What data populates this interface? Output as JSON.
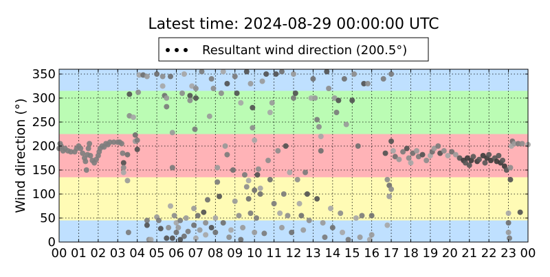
{
  "chart_data": {
    "type": "scatter",
    "title": "Latest time: 2024-08-29 00:00:00 UTC",
    "legend": {
      "label": "Resultant wind direction (200.5°)",
      "placement": "top-center",
      "marker": "•••"
    },
    "xlabel": "",
    "ylabel": "Wind direction (°)",
    "xlim": [
      0,
      24
    ],
    "ylim": [
      0,
      360
    ],
    "grid": true,
    "x_tick_labels": [
      "00",
      "01",
      "02",
      "03",
      "04",
      "05",
      "06",
      "07",
      "08",
      "09",
      "10",
      "11",
      "12",
      "13",
      "14",
      "15",
      "16",
      "17",
      "18",
      "19",
      "20",
      "21",
      "22",
      "23",
      "00"
    ],
    "y_ticks": [
      0,
      50,
      100,
      150,
      200,
      250,
      300,
      350
    ],
    "bands": [
      {
        "from": 0,
        "to": 45,
        "color": "#bfe0ff"
      },
      {
        "from": 45,
        "to": 135,
        "color": "#fffbb5"
      },
      {
        "from": 135,
        "to": 225,
        "color": "#ffb3b7"
      },
      {
        "from": 225,
        "to": 315,
        "color": "#bbfcb4"
      },
      {
        "from": 315,
        "to": 360,
        "color": "#bfe0ff"
      }
    ],
    "points": [
      [
        0.0,
        195
      ],
      [
        0.05,
        205
      ],
      [
        0.1,
        200
      ],
      [
        0.2,
        190
      ],
      [
        0.3,
        195
      ],
      [
        0.45,
        190
      ],
      [
        0.6,
        188
      ],
      [
        0.8,
        188
      ],
      [
        0.9,
        195
      ],
      [
        1.0,
        200
      ],
      [
        1.1,
        195
      ],
      [
        1.2,
        185
      ],
      [
        1.3,
        175
      ],
      [
        1.35,
        168
      ],
      [
        1.4,
        150
      ],
      [
        1.45,
        182
      ],
      [
        1.5,
        195
      ],
      [
        1.55,
        205
      ],
      [
        1.6,
        180
      ],
      [
        1.7,
        170
      ],
      [
        1.8,
        165
      ],
      [
        1.9,
        172
      ],
      [
        2.0,
        180
      ],
      [
        2.05,
        188
      ],
      [
        2.1,
        195
      ],
      [
        2.2,
        200
      ],
      [
        2.3,
        198
      ],
      [
        2.4,
        205
      ],
      [
        2.5,
        203
      ],
      [
        2.6,
        208
      ],
      [
        2.8,
        208
      ],
      [
        3.0,
        208
      ],
      [
        3.1,
        208
      ],
      [
        3.2,
        205
      ],
      [
        3.25,
        185
      ],
      [
        3.3,
        165
      ],
      [
        3.3,
        155
      ],
      [
        3.3,
        145
      ],
      [
        3.5,
        182
      ],
      [
        3.5,
        128
      ],
      [
        3.55,
        20
      ],
      [
        3.6,
        308
      ],
      [
        3.6,
        263
      ],
      [
        3.8,
        260
      ],
      [
        3.9,
        223
      ],
      [
        3.9,
        210
      ],
      [
        4.0,
        212
      ],
      [
        4.0,
        193
      ],
      [
        4.05,
        312
      ],
      [
        4.1,
        348
      ],
      [
        4.3,
        348
      ],
      [
        4.5,
        345
      ],
      [
        4.5,
        45
      ],
      [
        4.5,
        35
      ],
      [
        4.6,
        5
      ],
      [
        4.7,
        5
      ],
      [
        5.0,
        350
      ],
      [
        5.0,
        52
      ],
      [
        5.1,
        45
      ],
      [
        5.2,
        28
      ],
      [
        5.3,
        345
      ],
      [
        5.3,
        325
      ],
      [
        5.4,
        305
      ],
      [
        5.5,
        300
      ],
      [
        5.5,
        282
      ],
      [
        5.5,
        8
      ],
      [
        5.6,
        30
      ],
      [
        5.7,
        75
      ],
      [
        5.7,
        345
      ],
      [
        5.8,
        228
      ],
      [
        5.8,
        155
      ],
      [
        5.8,
        8
      ],
      [
        5.9,
        55
      ],
      [
        6.0,
        40
      ],
      [
        6.0,
        20
      ],
      [
        6.1,
        30
      ],
      [
        6.2,
        45
      ],
      [
        6.2,
        5
      ],
      [
        6.3,
        310
      ],
      [
        6.4,
        350
      ],
      [
        6.4,
        12
      ],
      [
        6.5,
        50
      ],
      [
        6.6,
        22
      ],
      [
        6.7,
        305
      ],
      [
        6.7,
        295
      ],
      [
        6.8,
        325
      ],
      [
        6.9,
        35
      ],
      [
        6.9,
        70
      ],
      [
        6.95,
        235
      ],
      [
        7.0,
        300
      ],
      [
        7.0,
        320
      ],
      [
        7.0,
        8
      ],
      [
        7.1,
        55
      ],
      [
        7.2,
        25
      ],
      [
        7.3,
        355
      ],
      [
        7.4,
        62
      ],
      [
        7.5,
        40
      ],
      [
        7.5,
        15
      ],
      [
        7.6,
        88
      ],
      [
        7.7,
        262
      ],
      [
        7.8,
        340
      ],
      [
        7.8,
        30
      ],
      [
        7.9,
        320
      ],
      [
        8.0,
        50
      ],
      [
        8.0,
        20
      ],
      [
        8.1,
        155
      ],
      [
        8.1,
        125
      ],
      [
        8.2,
        95
      ],
      [
        8.3,
        310
      ],
      [
        8.4,
        355
      ],
      [
        8.4,
        40
      ],
      [
        8.5,
        200
      ],
      [
        8.6,
        182
      ],
      [
        8.6,
        330
      ],
      [
        8.7,
        10
      ],
      [
        8.8,
        25
      ],
      [
        8.9,
        150
      ],
      [
        9.0,
        85
      ],
      [
        9.0,
        345
      ],
      [
        9.1,
        310
      ],
      [
        9.2,
        55
      ],
      [
        9.3,
        290
      ],
      [
        9.3,
        5
      ],
      [
        9.4,
        30
      ],
      [
        9.5,
        140
      ],
      [
        9.6,
        355
      ],
      [
        9.6,
        115
      ],
      [
        9.7,
        128
      ],
      [
        9.7,
        90
      ],
      [
        9.8,
        330
      ],
      [
        9.8,
        60
      ],
      [
        9.9,
        280
      ],
      [
        9.9,
        238
      ],
      [
        10.0,
        212
      ],
      [
        10.0,
        108
      ],
      [
        10.0,
        20
      ],
      [
        10.1,
        50
      ],
      [
        10.15,
        140
      ],
      [
        10.2,
        152
      ],
      [
        10.3,
        112
      ],
      [
        10.3,
        100
      ],
      [
        10.4,
        335
      ],
      [
        10.5,
        18
      ],
      [
        10.6,
        350
      ],
      [
        10.7,
        170
      ],
      [
        10.8,
        270
      ],
      [
        10.8,
        130
      ],
      [
        10.9,
        290
      ],
      [
        11.0,
        80
      ],
      [
        11.1,
        350
      ],
      [
        11.2,
        190
      ],
      [
        11.3,
        60
      ],
      [
        11.4,
        355
      ],
      [
        11.4,
        30
      ],
      [
        11.5,
        100
      ],
      [
        11.6,
        200
      ],
      [
        11.7,
        55
      ],
      [
        11.8,
        145
      ],
      [
        11.9,
        20
      ],
      [
        12.0,
        350
      ],
      [
        12.0,
        300
      ],
      [
        12.1,
        310
      ],
      [
        12.2,
        130
      ],
      [
        12.3,
        80
      ],
      [
        12.4,
        55
      ],
      [
        12.5,
        25
      ],
      [
        12.6,
        145
      ],
      [
        12.7,
        100
      ],
      [
        12.8,
        45
      ],
      [
        12.9,
        300
      ],
      [
        13.0,
        340
      ],
      [
        13.1,
        300
      ],
      [
        13.2,
        255
      ],
      [
        13.2,
        90
      ],
      [
        13.3,
        240
      ],
      [
        13.4,
        220
      ],
      [
        13.4,
        190
      ],
      [
        13.5,
        40
      ],
      [
        13.6,
        10
      ],
      [
        13.7,
        355
      ],
      [
        13.8,
        320
      ],
      [
        13.9,
        70
      ],
      [
        14.0,
        30
      ],
      [
        14.1,
        300
      ],
      [
        14.2,
        270
      ],
      [
        14.3,
        295
      ],
      [
        14.4,
        60
      ],
      [
        14.5,
        20
      ],
      [
        14.6,
        340
      ],
      [
        14.7,
        245
      ],
      [
        14.8,
        5
      ],
      [
        15.0,
        295
      ],
      [
        15.1,
        350
      ],
      [
        15.2,
        50
      ],
      [
        15.3,
        200
      ],
      [
        15.4,
        10
      ],
      [
        15.5,
        55
      ],
      [
        15.6,
        330
      ],
      [
        15.8,
        330
      ],
      [
        15.9,
        5
      ],
      [
        16.0,
        55
      ],
      [
        16.0,
        15
      ],
      [
        16.6,
        340
      ],
      [
        16.7,
        185
      ],
      [
        16.8,
        130
      ],
      [
        16.8,
        35
      ],
      [
        16.9,
        118
      ],
      [
        16.9,
        95
      ],
      [
        17.0,
        350
      ],
      [
        17.0,
        210
      ],
      [
        17.0,
        110
      ],
      [
        17.1,
        190
      ],
      [
        17.2,
        178
      ],
      [
        17.4,
        172
      ],
      [
        17.6,
        188
      ],
      [
        17.8,
        195
      ],
      [
        17.9,
        175
      ],
      [
        18.0,
        165
      ],
      [
        18.1,
        185
      ],
      [
        18.3,
        190
      ],
      [
        18.4,
        178
      ],
      [
        18.6,
        182
      ],
      [
        18.8,
        170
      ],
      [
        19.0,
        180
      ],
      [
        19.1,
        188
      ],
      [
        19.2,
        195
      ],
      [
        19.4,
        200
      ],
      [
        19.5,
        185
      ],
      [
        19.7,
        190
      ],
      [
        19.9,
        180
      ],
      [
        20.1,
        188
      ],
      [
        20.3,
        182
      ],
      [
        20.5,
        175
      ],
      [
        20.7,
        170
      ],
      [
        20.8,
        165
      ],
      [
        20.9,
        175
      ],
      [
        21.0,
        160
      ],
      [
        21.1,
        170
      ],
      [
        21.2,
        178
      ],
      [
        21.4,
        168
      ],
      [
        21.5,
        172
      ],
      [
        21.7,
        180
      ],
      [
        21.8,
        165
      ],
      [
        21.9,
        175
      ],
      [
        22.0,
        182
      ],
      [
        22.1,
        170
      ],
      [
        22.3,
        175
      ],
      [
        22.4,
        168
      ],
      [
        22.5,
        180
      ],
      [
        22.6,
        165
      ],
      [
        22.7,
        170
      ],
      [
        22.8,
        158
      ],
      [
        22.9,
        150
      ],
      [
        23.0,
        60
      ],
      [
        23.0,
        40
      ],
      [
        23.0,
        20
      ],
      [
        23.05,
        8
      ],
      [
        23.1,
        130
      ],
      [
        23.1,
        155
      ],
      [
        23.15,
        200
      ],
      [
        23.2,
        210
      ],
      [
        23.3,
        205
      ],
      [
        23.5,
        205
      ],
      [
        23.6,
        62
      ],
      [
        23.7,
        205
      ],
      [
        24.0,
        203
      ]
    ]
  }
}
